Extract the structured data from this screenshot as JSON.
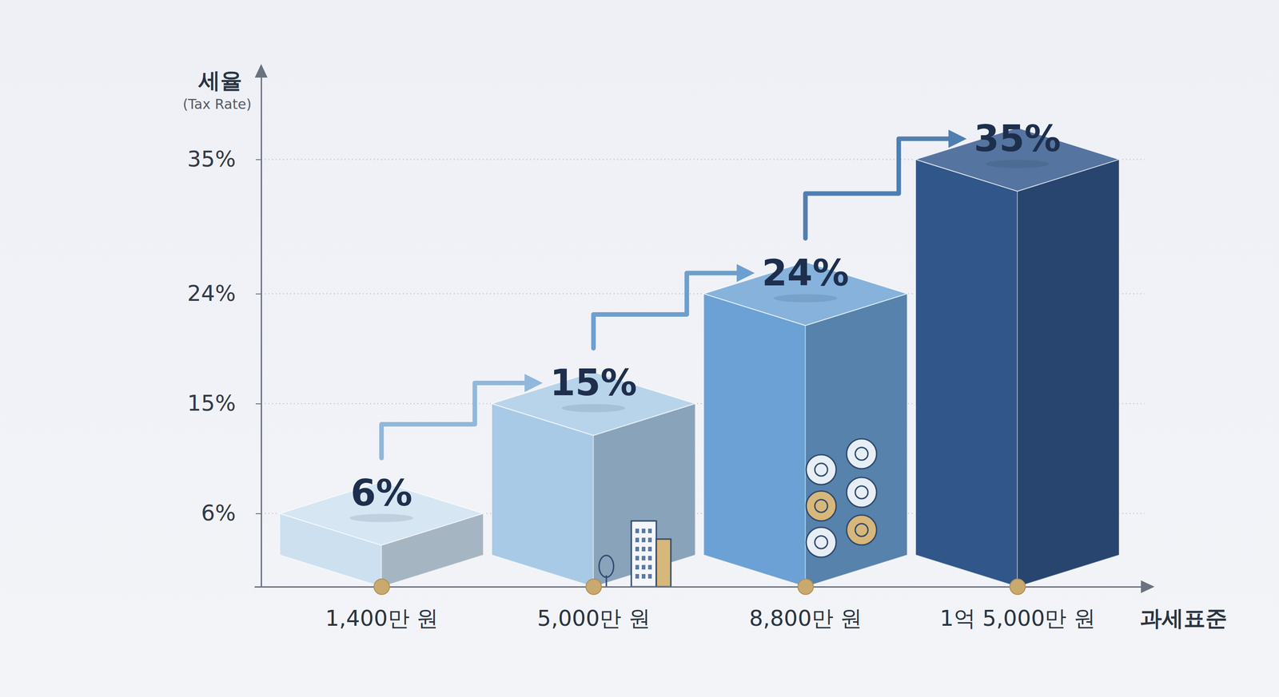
{
  "chart_data": {
    "type": "bar",
    "y_label": "세율",
    "y_sublabel": "(Tax Rate)",
    "x_label": "과세표준",
    "categories": [
      "1,400만 원",
      "5,000만 원",
      "8,800만 원",
      "1억 5,000만 원"
    ],
    "values": [
      6,
      15,
      24,
      35
    ],
    "value_labels": [
      "6%",
      "15%",
      "24%",
      "35%"
    ],
    "colors": [
      "#cde0f0",
      "#a8cae6",
      "#6ba1d4",
      "#30568a"
    ],
    "ylim": [
      0,
      42
    ],
    "yticks": [
      {
        "value": 6,
        "label": "6%"
      },
      {
        "value": 15,
        "label": "15%"
      },
      {
        "value": 24,
        "label": "24%"
      },
      {
        "value": 35,
        "label": "35%"
      }
    ],
    "grid": true,
    "data_labels": true
  }
}
